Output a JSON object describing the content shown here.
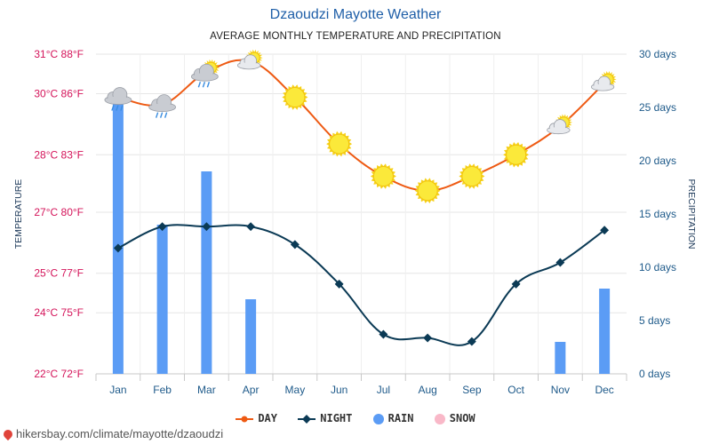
{
  "header": {
    "title": "Dzaoudzi Mayotte Weather",
    "subtitle": "AVERAGE MONTHLY TEMPERATURE AND PRECIPITATION"
  },
  "footer": {
    "source": "hikersbay.com/climate/mayotte/dzaoudzi"
  },
  "legend": {
    "day": "DAY",
    "night": "NIGHT",
    "rain": "RAIN",
    "snow": "SNOW"
  },
  "colors": {
    "day": "#ee5a13",
    "night": "#0b3a55",
    "rain": "#5b9cf5",
    "snow": "#f9b8c8",
    "left_axis_text": "#d4145a",
    "right_axis_text": "#1e5a8a"
  },
  "chart_data": {
    "type": "line",
    "categories": [
      "Jan",
      "Feb",
      "Mar",
      "Apr",
      "May",
      "Jun",
      "Jul",
      "Aug",
      "Sep",
      "Oct",
      "Nov",
      "Dec"
    ],
    "series": [
      {
        "name": "DAY",
        "axis": "temperature",
        "values": [
          29.9,
          29.7,
          30.6,
          30.9,
          29.9,
          28.6,
          27.7,
          27.3,
          27.7,
          28.3,
          29.1,
          30.3
        ]
      },
      {
        "name": "NIGHT",
        "axis": "temperature",
        "values": [
          25.7,
          26.3,
          26.3,
          26.3,
          25.8,
          24.7,
          23.3,
          23.2,
          23.1,
          24.7,
          25.3,
          26.2
        ]
      },
      {
        "name": "RAIN",
        "axis": "precipitation",
        "type": "bar",
        "values": [
          26,
          14,
          19,
          7,
          0,
          0,
          0,
          0,
          0,
          0,
          3,
          8
        ]
      },
      {
        "name": "SNOW",
        "axis": "precipitation",
        "type": "bar",
        "values": [
          0,
          0,
          0,
          0,
          0,
          0,
          0,
          0,
          0,
          0,
          0,
          0
        ]
      }
    ],
    "weather_icons": [
      "cloud-rain",
      "cloud-rain",
      "cloud-sun-rain",
      "cloud-sun",
      "sun",
      "sun",
      "sun",
      "sun",
      "sun",
      "sun",
      "cloud-sun",
      "cloud-sun"
    ],
    "ylabel": "TEMPERATURE",
    "y2label": "PRECIPITATION",
    "ylim": [
      22.2,
      31.1
    ],
    "y2lim": [
      0,
      30
    ],
    "y_ticks": [
      {
        "c": 22.2,
        "label": "22°C 72°F"
      },
      {
        "c": 23.9,
        "label": "24°C 75°F"
      },
      {
        "c": 25.0,
        "label": "25°C 77°F"
      },
      {
        "c": 26.7,
        "label": "27°C 80°F"
      },
      {
        "c": 28.3,
        "label": "28°C 83°F"
      },
      {
        "c": 30.0,
        "label": "30°C 86°F"
      },
      {
        "c": 31.1,
        "label": "31°C 88°F"
      }
    ],
    "y2_ticks": [
      {
        "v": 0,
        "label": "0 days"
      },
      {
        "v": 5,
        "label": "5 days"
      },
      {
        "v": 10,
        "label": "10 days"
      },
      {
        "v": 15,
        "label": "15 days"
      },
      {
        "v": 20,
        "label": "20 days"
      },
      {
        "v": 25,
        "label": "25 days"
      },
      {
        "v": 30,
        "label": "30 days"
      }
    ],
    "grid": true,
    "legend_position": "bottom"
  }
}
